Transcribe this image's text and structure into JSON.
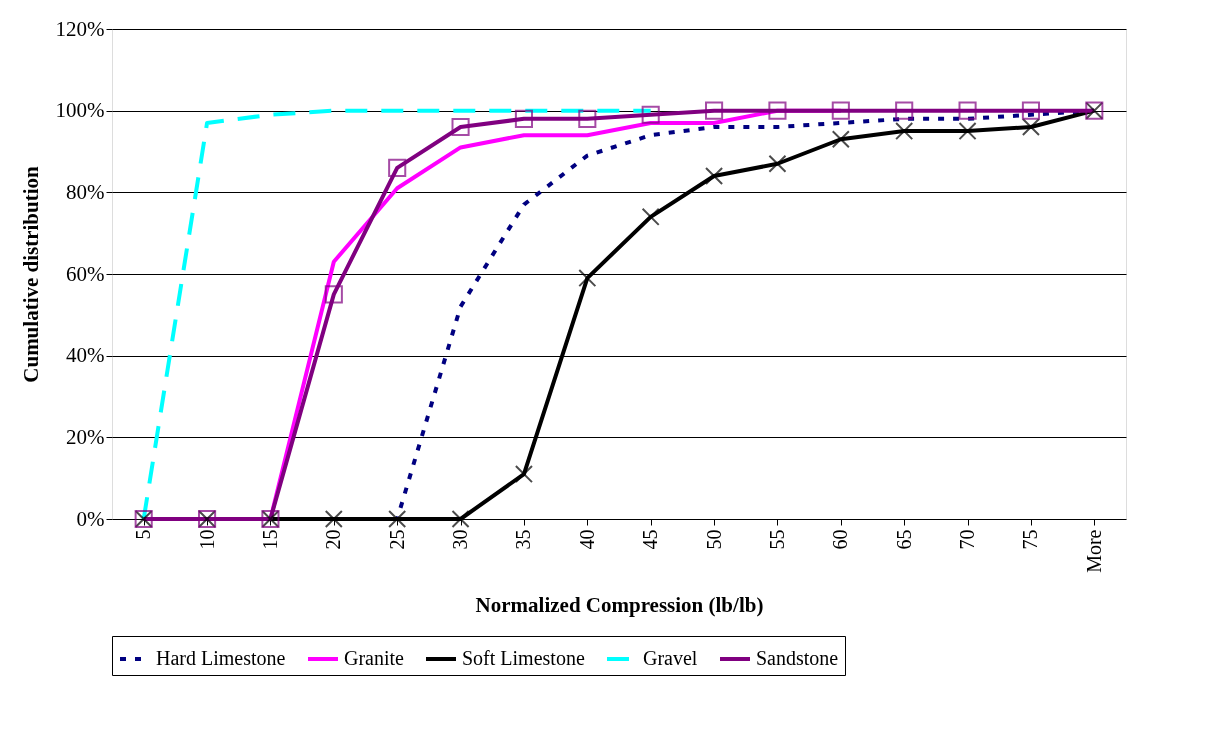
{
  "chart_data": {
    "type": "line",
    "xlabel": "Normalized Compression (lb/lb)",
    "ylabel": "Cumulative distribution",
    "categories": [
      "5",
      "10",
      "15",
      "20",
      "25",
      "30",
      "35",
      "40",
      "45",
      "50",
      "55",
      "60",
      "65",
      "70",
      "75",
      "More"
    ],
    "ylim": [
      0,
      120
    ],
    "yticks": [
      {
        "value": 0,
        "label": "0%"
      },
      {
        "value": 20,
        "label": "20%"
      },
      {
        "value": 40,
        "label": "40%"
      },
      {
        "value": 60,
        "label": "60%"
      },
      {
        "value": 80,
        "label": "80%"
      },
      {
        "value": 100,
        "label": "100%"
      },
      {
        "value": 120,
        "label": "120%"
      }
    ],
    "grid": "y",
    "legend": "bottom",
    "series": [
      {
        "name": "Hard Limestone",
        "color": "#000080",
        "line_style": "dotted",
        "marker": "none",
        "values": [
          null,
          null,
          null,
          0,
          0,
          52,
          77,
          89,
          94,
          96,
          96,
          97,
          98,
          98,
          99,
          100
        ]
      },
      {
        "name": "Granite",
        "color": "#ff00ff",
        "line_style": "solid",
        "marker": "none",
        "values": [
          0,
          0,
          0,
          63,
          81,
          91,
          94,
          94,
          97,
          97,
          100,
          100,
          null,
          null,
          null,
          null
        ]
      },
      {
        "name": "Soft Limestone",
        "color": "#000000",
        "line_style": "solid",
        "marker": "cross",
        "values": [
          0,
          0,
          0,
          0,
          0,
          0,
          11,
          59,
          74,
          84,
          87,
          93,
          95,
          95,
          96,
          100
        ]
      },
      {
        "name": "Gravel",
        "color": "#00ffff",
        "line_style": "dashed",
        "marker": "none",
        "values": [
          0,
          97,
          99,
          100,
          100,
          100,
          100,
          100,
          100,
          null,
          null,
          null,
          null,
          null,
          null,
          null
        ]
      },
      {
        "name": "Sandstone",
        "color": "#800080",
        "line_style": "solid",
        "marker": "square",
        "values": [
          0,
          0,
          0,
          55,
          86,
          96,
          98,
          98,
          99,
          100,
          100,
          100,
          100,
          100,
          100,
          100
        ]
      }
    ]
  }
}
